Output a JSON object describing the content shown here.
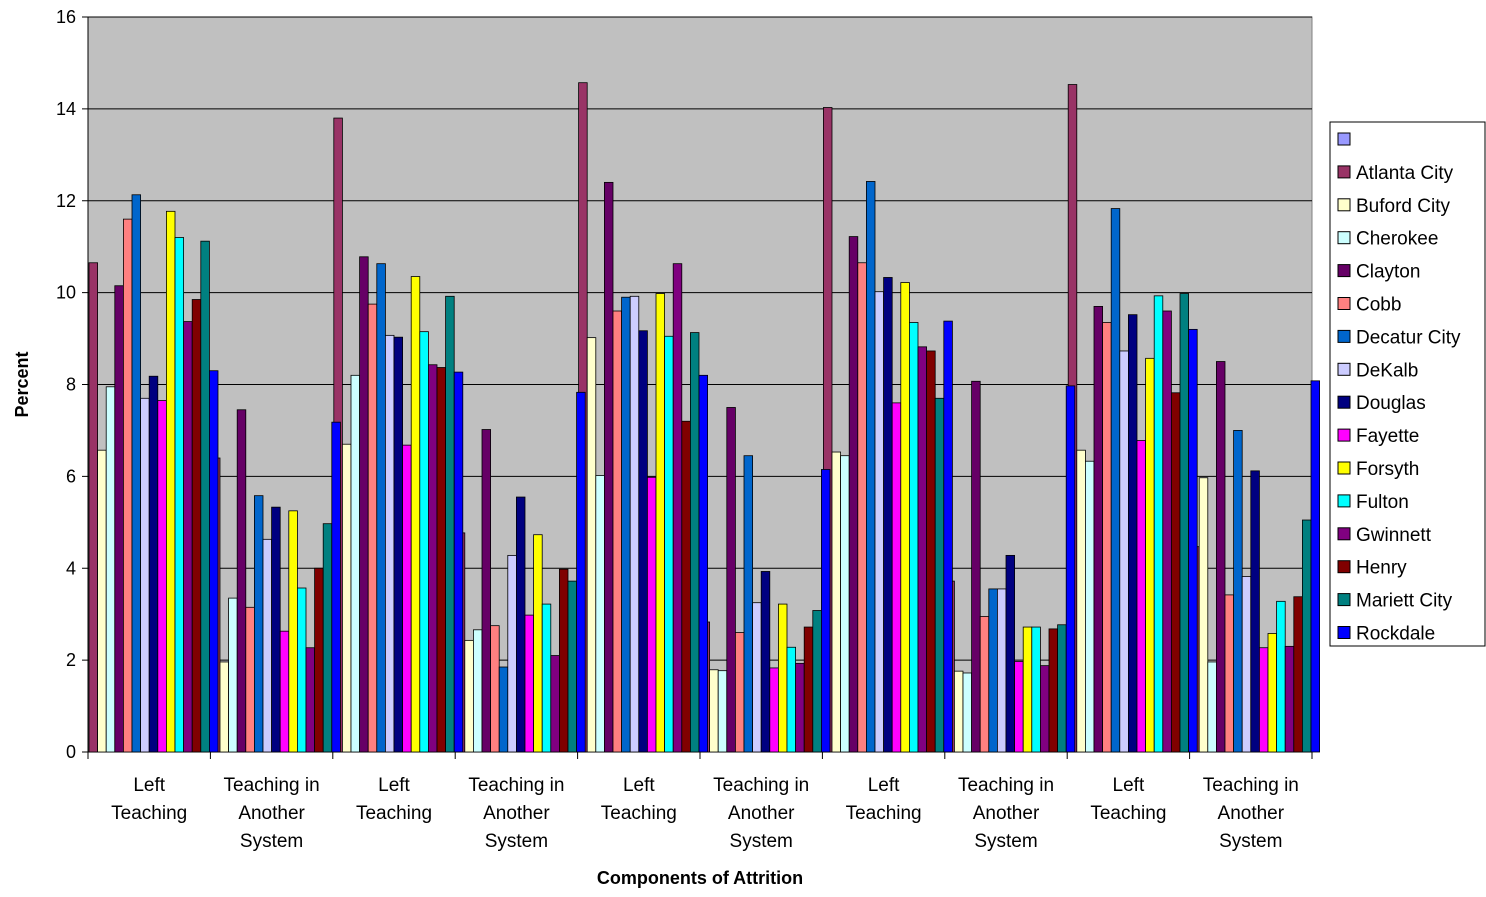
{
  "chart_data": {
    "type": "bar",
    "title": "",
    "xlabel": "Components of Attrition",
    "ylabel": "Percent",
    "ylim": [
      0,
      16
    ],
    "yticks": [
      0,
      2,
      4,
      6,
      8,
      10,
      12,
      14,
      16
    ],
    "grid": true,
    "legend_position": "right",
    "categories": [
      [
        "Left",
        "Teaching"
      ],
      [
        "Teaching in",
        "Another",
        "System"
      ],
      [
        "Left",
        "Teaching"
      ],
      [
        "Teaching in",
        "Another",
        "System"
      ],
      [
        "Left",
        "Teaching"
      ],
      [
        "Teaching in",
        "Another",
        "System"
      ],
      [
        "Left",
        "Teaching"
      ],
      [
        "Teaching in",
        "Another",
        "System"
      ],
      [
        "Left",
        "Teaching"
      ],
      [
        "Teaching in",
        "Another",
        "System"
      ]
    ],
    "series": [
      {
        "name": "",
        "color": "#9999ff",
        "values": [
          0,
          0,
          0,
          0,
          0,
          0,
          0,
          0,
          0,
          0
        ]
      },
      {
        "name": "Atlanta City",
        "color": "#993366",
        "values": [
          10.65,
          6.4,
          13.8,
          4.77,
          14.57,
          2.83,
          14.03,
          3.72,
          14.53,
          4.47
        ]
      },
      {
        "name": "Buford City",
        "color": "#ffffcc",
        "values": [
          6.57,
          1.96,
          6.7,
          2.43,
          9.02,
          1.79,
          6.53,
          1.76,
          6.57,
          5.97
        ]
      },
      {
        "name": "Cherokee",
        "color": "#ccffff",
        "values": [
          7.95,
          3.35,
          8.2,
          2.66,
          6.02,
          1.77,
          6.45,
          1.72,
          6.33,
          1.96
        ]
      },
      {
        "name": "Clayton",
        "color": "#660066",
        "values": [
          10.15,
          7.45,
          10.78,
          7.02,
          12.4,
          7.5,
          11.22,
          8.07,
          9.7,
          8.5
        ]
      },
      {
        "name": "Cobb",
        "color": "#ff8080",
        "values": [
          11.6,
          3.15,
          9.75,
          2.75,
          9.6,
          2.6,
          10.65,
          2.95,
          9.35,
          3.42
        ]
      },
      {
        "name": "Decatur City",
        "color": "#0066cc",
        "values": [
          12.13,
          5.58,
          10.63,
          1.85,
          9.9,
          6.45,
          12.42,
          3.55,
          11.83,
          7.0
        ]
      },
      {
        "name": "DeKalb",
        "color": "#ccccff",
        "values": [
          7.7,
          4.63,
          9.07,
          4.28,
          9.92,
          3.25,
          10.02,
          3.55,
          8.73,
          3.82
        ]
      },
      {
        "name": "Douglas",
        "color": "#000080",
        "values": [
          8.18,
          5.33,
          9.03,
          5.55,
          9.17,
          3.93,
          10.33,
          4.28,
          9.52,
          6.12
        ]
      },
      {
        "name": "Fayette",
        "color": "#ff00ff",
        "values": [
          7.65,
          2.63,
          6.68,
          2.98,
          5.98,
          1.83,
          7.6,
          1.97,
          6.78,
          2.27
        ]
      },
      {
        "name": "Forsyth",
        "color": "#ffff00",
        "values": [
          11.77,
          5.25,
          10.35,
          4.73,
          9.98,
          3.22,
          10.22,
          2.72,
          8.57,
          2.58
        ]
      },
      {
        "name": "Fulton",
        "color": "#00ffff",
        "values": [
          11.2,
          3.57,
          9.15,
          3.22,
          9.05,
          2.28,
          9.35,
          2.72,
          9.93,
          3.28
        ]
      },
      {
        "name": "Gwinnett",
        "color": "#800080",
        "values": [
          9.37,
          2.27,
          8.43,
          2.1,
          10.63,
          1.93,
          8.82,
          1.88,
          9.6,
          2.3
        ]
      },
      {
        "name": "Henry",
        "color": "#800000",
        "values": [
          9.85,
          4.0,
          8.37,
          3.98,
          7.2,
          2.72,
          8.73,
          2.68,
          7.82,
          3.38
        ]
      },
      {
        "name": "Mariett City",
        "color": "#008080",
        "values": [
          11.12,
          4.97,
          9.92,
          3.72,
          9.13,
          3.08,
          7.7,
          2.77,
          9.98,
          5.05
        ]
      },
      {
        "name": "Rockdale",
        "color": "#0000ff",
        "values": [
          8.3,
          7.18,
          8.27,
          7.83,
          8.2,
          6.15,
          9.38,
          7.97,
          9.2,
          8.08
        ]
      }
    ]
  }
}
